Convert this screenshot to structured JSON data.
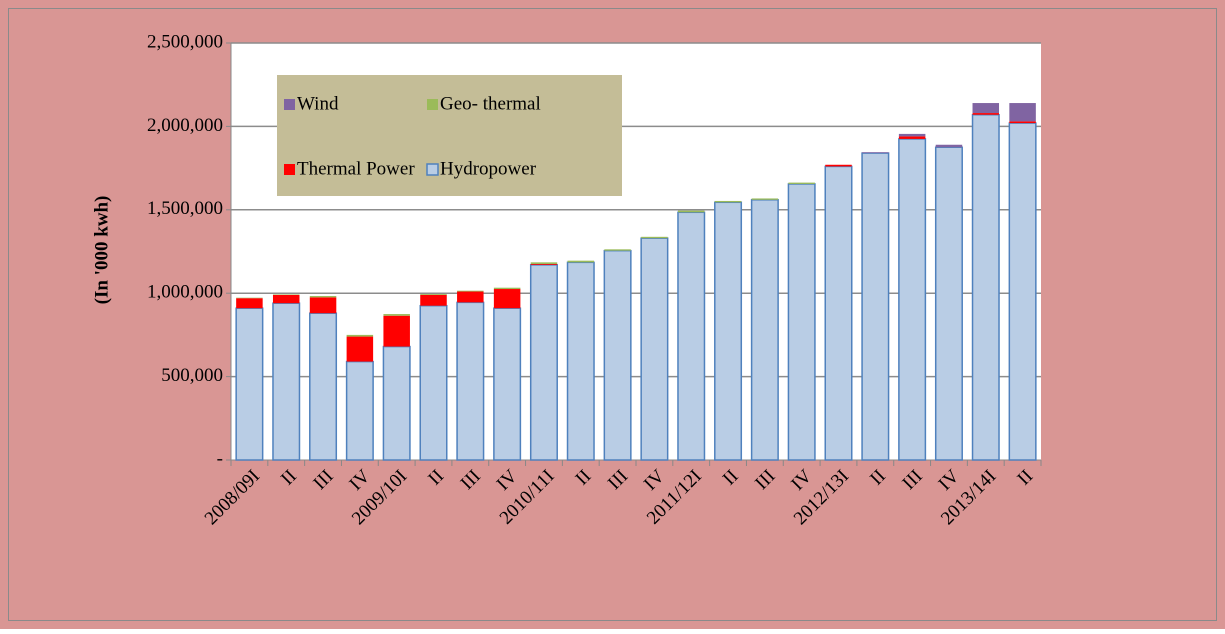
{
  "chart_data": {
    "type": "stacked_bar",
    "y_label": "(In '000 kwh)",
    "categories": [
      "2008/09I",
      "II",
      "III",
      "IV",
      "2009/10I",
      "II",
      "III",
      "IV",
      "2010/11I",
      "II",
      "III",
      "IV",
      "2011/12I",
      "II",
      "III",
      "IV",
      "2012/13I",
      "II",
      "III",
      "IV",
      "2013/14I",
      "II"
    ],
    "series": [
      {
        "name": "Hydropower",
        "color": "#b9cde5",
        "values": [
          910000,
          940000,
          880000,
          590000,
          680000,
          925000,
          945000,
          910000,
          1170000,
          1185000,
          1255000,
          1330000,
          1485000,
          1545000,
          1560000,
          1655000,
          1760000,
          1840000,
          1925000,
          1875000,
          2070000,
          2020000
        ]
      },
      {
        "name": "Thermal Power",
        "color": "#ff0000",
        "values": [
          60000,
          50000,
          95000,
          150000,
          185000,
          65000,
          65000,
          115000,
          5000,
          0,
          0,
          0,
          0,
          0,
          0,
          0,
          10000,
          0,
          15000,
          0,
          10000,
          10000
        ]
      },
      {
        "name": "Geo- thermal",
        "color": "#9bbb59",
        "values": [
          3000,
          3000,
          8000,
          10000,
          10000,
          5000,
          5000,
          8000,
          10000,
          10000,
          8000,
          8000,
          10000,
          8000,
          8000,
          8000,
          0,
          0,
          0,
          0,
          0,
          0
        ]
      },
      {
        "name": "Wind",
        "color": "#8064a2",
        "values": [
          0,
          0,
          0,
          0,
          0,
          0,
          0,
          0,
          0,
          0,
          0,
          0,
          0,
          0,
          0,
          0,
          0,
          5000,
          15000,
          15000,
          60000,
          110000
        ]
      }
    ],
    "ylim": [
      0,
      2500000
    ],
    "yticks": [
      {
        "value": 0,
        "label": "-"
      },
      {
        "value": 500000,
        "label": "500,000"
      },
      {
        "value": 1000000,
        "label": "1,000,000"
      },
      {
        "value": 1500000,
        "label": "1,500,000"
      },
      {
        "value": 2000000,
        "label": "2,000,000"
      },
      {
        "value": 2500000,
        "label": "2,500,000"
      }
    ],
    "grid": true,
    "legend": "top-left"
  }
}
